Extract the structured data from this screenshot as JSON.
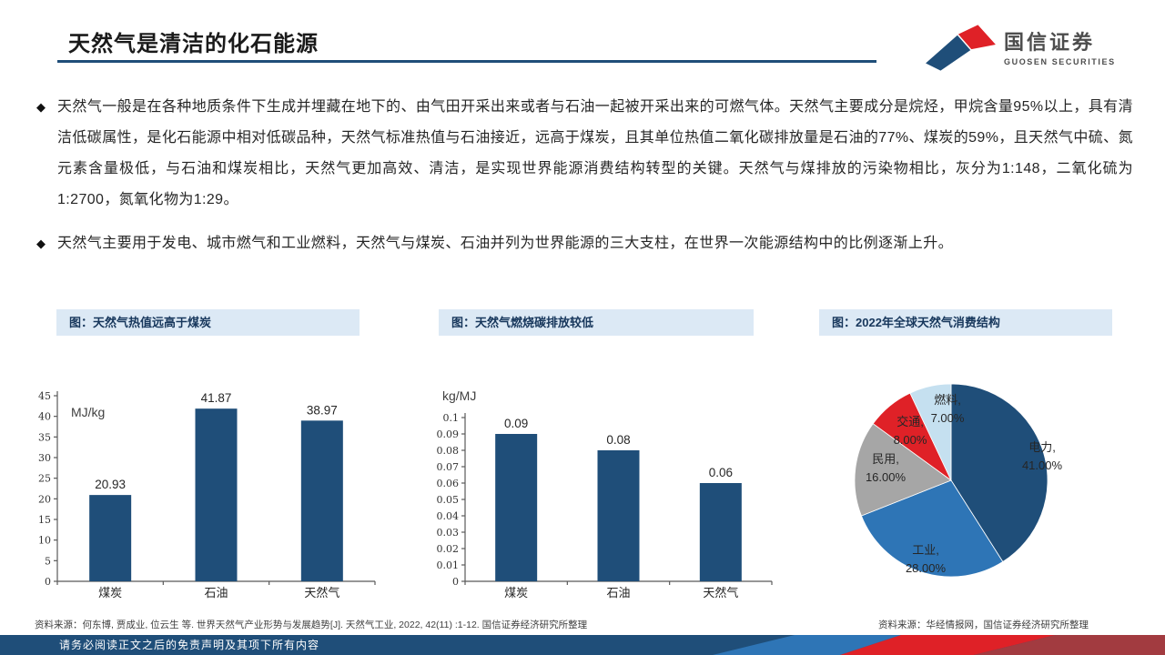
{
  "header": {
    "title": "天然气是清洁的化石能源",
    "logo": {
      "cn": "国信证券",
      "en": "GUOSEN SECURITIES"
    }
  },
  "bullets": [
    {
      "text": "天然气一般是在各种地质条件下生成并埋藏在地下的、由气田开采出来或者与石油一起被开采出来的可燃气体。天然气主要成分是烷烃，甲烷含量95%以上，具有清洁低碳属性，是化石能源中相对低碳品种，天然气标准热值与石油接近，远高于煤炭，且其单位热值二氧化碳排放量是石油的77%、煤炭的59%，且天然气中硫、氮元素含量极低，与石油和煤炭相比，天然气更加高效、清洁，是实现世界能源消费结构转型的关键。天然气与煤排放的污染物相比，灰分为1:148，二氧化硫为1:2700，氮氧化物为1:29。"
    },
    {
      "text": "天然气主要用于发电、城市燃气和工业燃料，天然气与煤炭、石油并列为世界能源的三大支柱，在世界一次能源结构中的比例逐渐上升。"
    }
  ],
  "chart_data": [
    {
      "type": "bar",
      "title": "图：天然气热值远高于煤炭",
      "unit": "MJ/kg",
      "categories": [
        "煤炭",
        "石油",
        "天然气"
      ],
      "values": [
        20.93,
        41.87,
        38.97
      ],
      "ylim": [
        0,
        45
      ],
      "ytick_step": 5,
      "grid": false,
      "bar_color": "#1F4E79"
    },
    {
      "type": "bar",
      "title": "图：天然气燃烧碳排放较低",
      "unit": "kg/MJ",
      "categories": [
        "煤炭",
        "石油",
        "天然气"
      ],
      "values": [
        0.09,
        0.08,
        0.06
      ],
      "ylim": [
        0,
        0.1
      ],
      "ytick_step": 0.01,
      "grid": false,
      "bar_color": "#1F4E79"
    },
    {
      "type": "pie",
      "title": "图：2022年全球天然气消费结构",
      "slices": [
        {
          "label": "电力",
          "value": 41,
          "color": "#1F4E79"
        },
        {
          "label": "工业",
          "value": 28,
          "color": "#2E75B6"
        },
        {
          "label": "民用",
          "value": 16,
          "color": "#A6A6A6"
        },
        {
          "label": "交通",
          "value": 8,
          "color": "#DF2127"
        },
        {
          "label": "燃料",
          "value": 7,
          "color": "#C5E0F0"
        }
      ],
      "start_angle": "top-clockwise",
      "label_format": "{label}, {value}.00%"
    }
  ],
  "sources": {
    "left": "资料来源：何东博, 贾成业, 位云生 等. 世界天然气产业形势与发展趋势[J]. 天然气工业, 2022, 42(11) :1-12. 国信证券经济研究所整理",
    "right": "资料来源：华经情报网，国信证券经济研究所整理"
  },
  "footer": {
    "disclaimer": "请务必阅读正文之后的免责声明及其项下所有内容"
  },
  "colors": {
    "navy": "#1F4E79",
    "medium_blue": "#2E75B6",
    "light_blue": "#C5E0F0",
    "gray": "#A6A6A6",
    "red": "#DF2127",
    "dark_red": "#A23B40",
    "title_bar_bg": "#DCE9F5",
    "title_bar_text": "#17375C"
  }
}
